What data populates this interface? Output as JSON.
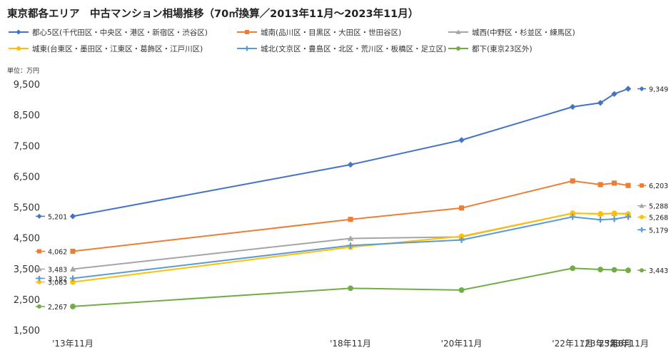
{
  "chart_data": {
    "type": "line",
    "title": "東京都各エリア　中古マンション相場推移（70㎡換算／2013年11月～2023年11月）",
    "unit_label": "単位：万円",
    "categories": [
      "'13年11月",
      "'18年11月",
      "'20年11月",
      "'22年11月",
      "'23年5月",
      "'23年8月",
      "'23年11月"
    ],
    "x_positions": [
      "2013-11",
      "2018-11",
      "2020-11",
      "2022-11",
      "2023-05",
      "2023-08",
      "2023-11"
    ],
    "ylim": [
      1500,
      9500
    ],
    "yticks": [
      "1,500",
      "2,500",
      "3,500",
      "4,500",
      "5,500",
      "6,500",
      "7,500",
      "8,500",
      "9,500"
    ],
    "ytick_values": [
      1500,
      2500,
      3500,
      4500,
      5500,
      6500,
      7500,
      8500,
      9500
    ],
    "grid": false,
    "legend_position": "top",
    "series": [
      {
        "name": "都心5区(千代田区・中央区・港区・新宿区・渋谷区)",
        "color": "#4472C4",
        "marker": "diamond",
        "values": [
          5201,
          6880,
          7680,
          8760,
          8890,
          9180,
          9349
        ],
        "first_label": "5,201",
        "last_label": "9,349"
      },
      {
        "name": "城南(品川区・目黒区・大田区・世田谷区)",
        "color": "#ED7D31",
        "marker": "square",
        "values": [
          4062,
          5100,
          5470,
          6350,
          6230,
          6280,
          6203
        ],
        "first_label": "4,062",
        "last_label": "6,203"
      },
      {
        "name": "城西(中野区・杉並区・練馬区)",
        "color": "#A5A5A5",
        "marker": "triangle",
        "values": [
          3483,
          4480,
          4530,
          5300,
          5280,
          5290,
          5288
        ],
        "first_label": "3,483",
        "last_label": "5,288"
      },
      {
        "name": "城東(台東区・墨田区・江東区・葛飾区・江戸川区)",
        "color": "#FFC000",
        "marker": "circle",
        "values": [
          3063,
          4200,
          4550,
          5300,
          5280,
          5300,
          5268
        ],
        "first_label": "3,063",
        "last_label": "5,268"
      },
      {
        "name": "城北(文京区・豊島区・北区・荒川区・板橋区・足立区)",
        "color": "#5B9BD5",
        "marker": "cross",
        "values": [
          3182,
          4250,
          4430,
          5180,
          5090,
          5110,
          5179
        ],
        "first_label": "3,182",
        "last_label": "5,179"
      },
      {
        "name": "都下(東京23区外)",
        "color": "#70AD47",
        "marker": "circle",
        "values": [
          2267,
          2860,
          2800,
          3510,
          3470,
          3460,
          3443
        ],
        "first_label": "2,267",
        "last_label": "3,443"
      }
    ]
  }
}
